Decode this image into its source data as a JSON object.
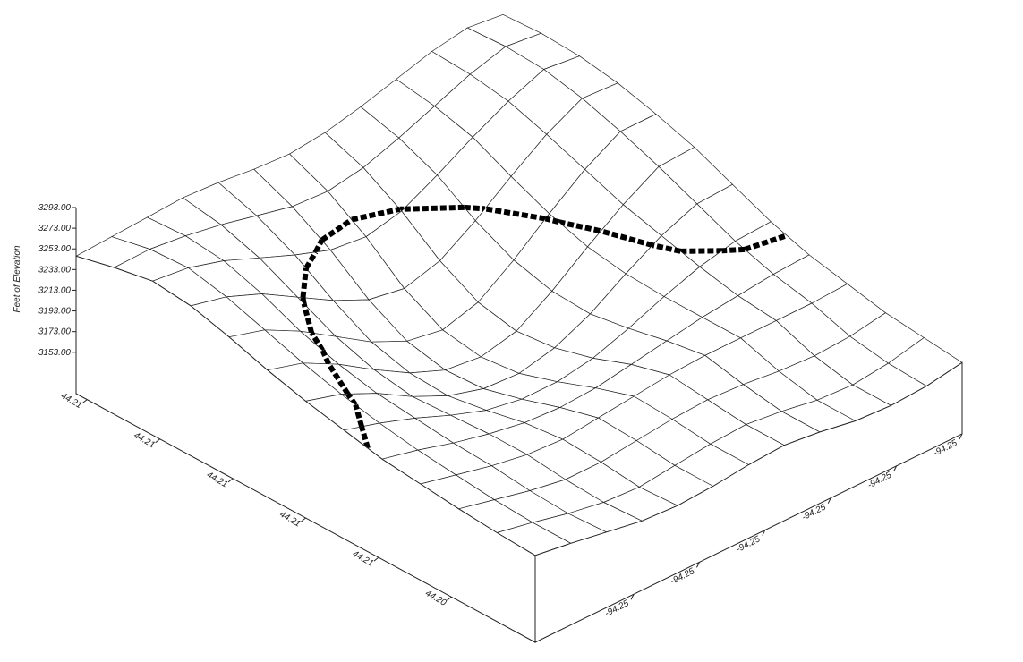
{
  "chart_data": {
    "type": "surface",
    "zlabel": "Feet of Elevation",
    "x": [
      44.2143,
      44.21325,
      44.2122,
      44.21115,
      44.2101,
      44.20905,
      44.208,
      44.20695,
      44.2059,
      44.20485,
      44.2038,
      44.20275,
      44.2017
    ],
    "y": [
      -94.2556,
      -94.25495,
      -94.2543,
      -94.25365,
      -94.253,
      -94.25235,
      -94.2517,
      -94.25105,
      -94.2504,
      -94.24975,
      -94.2491,
      -94.24845,
      -94.2478
    ],
    "z": [
      [
        3246,
        3248,
        3250,
        3252,
        3250,
        3246,
        3244,
        3248,
        3256,
        3266,
        3276,
        3282,
        3278
      ],
      [
        3255,
        3256,
        3252,
        3246,
        3238,
        3230,
        3228,
        3234,
        3246,
        3260,
        3274,
        3284,
        3280
      ],
      [
        3262,
        3258,
        3248,
        3234,
        3220,
        3208,
        3204,
        3212,
        3230,
        3250,
        3268,
        3282,
        3278
      ],
      [
        3258,
        3250,
        3236,
        3216,
        3196,
        3180,
        3174,
        3184,
        3206,
        3232,
        3256,
        3274,
        3272
      ],
      [
        3248,
        3238,
        3220,
        3198,
        3176,
        3160,
        3154,
        3164,
        3188,
        3216,
        3242,
        3262,
        3262
      ],
      [
        3236,
        3226,
        3208,
        3186,
        3166,
        3152,
        3148,
        3156,
        3178,
        3204,
        3228,
        3248,
        3250
      ],
      [
        3226,
        3216,
        3200,
        3180,
        3164,
        3154,
        3152,
        3160,
        3176,
        3198,
        3218,
        3232,
        3234
      ],
      [
        3218,
        3208,
        3196,
        3182,
        3170,
        3164,
        3164,
        3170,
        3182,
        3196,
        3208,
        3216,
        3218
      ],
      [
        3210,
        3202,
        3192,
        3184,
        3178,
        3176,
        3178,
        3184,
        3190,
        3196,
        3200,
        3204,
        3206
      ],
      [
        3206,
        3198,
        3190,
        3184,
        3182,
        3186,
        3190,
        3194,
        3196,
        3196,
        3196,
        3196,
        3198
      ],
      [
        3202,
        3194,
        3186,
        3180,
        3180,
        3184,
        3188,
        3190,
        3188,
        3184,
        3182,
        3184,
        3190
      ],
      [
        3199,
        3192,
        3184,
        3178,
        3176,
        3180,
        3184,
        3186,
        3182,
        3176,
        3174,
        3178,
        3186
      ],
      [
        3197,
        3192,
        3186,
        3180,
        3178,
        3180,
        3184,
        3186,
        3182,
        3176,
        3174,
        3176,
        3182
      ]
    ],
    "xlim": [
      44.2143,
      44.2017
    ],
    "ylim": [
      -94.2556,
      -94.2478
    ],
    "zlim": [
      3113,
      3293
    ],
    "xticks": [
      {
        "value": 44.214,
        "label": "44.21"
      },
      {
        "value": 44.212,
        "label": "44.21"
      },
      {
        "value": 44.21,
        "label": "44.21"
      },
      {
        "value": 44.208,
        "label": "44.21"
      },
      {
        "value": 44.206,
        "label": "44.21"
      },
      {
        "value": 44.204,
        "label": "44.20"
      }
    ],
    "yticks": [
      {
        "value": -94.2538,
        "label": "-94.25"
      },
      {
        "value": -94.2526,
        "label": "-94.25"
      },
      {
        "value": -94.2514,
        "label": "-94.25"
      },
      {
        "value": -94.2502,
        "label": "-94.25"
      },
      {
        "value": -94.249,
        "label": "-94.25"
      },
      {
        "value": -94.2478,
        "label": "-94.25"
      }
    ],
    "zticks": [
      {
        "value": 3293,
        "label": "3293.00"
      },
      {
        "value": 3273,
        "label": "3273.00"
      },
      {
        "value": 3253,
        "label": "3253.00"
      },
      {
        "value": 3233,
        "label": "3233.00"
      },
      {
        "value": 3213,
        "label": "3213.00"
      },
      {
        "value": 3193,
        "label": "3193.00"
      },
      {
        "value": 3173,
        "label": "3173.00"
      },
      {
        "value": 3153,
        "label": "3153.00"
      }
    ],
    "contour_level": 3213,
    "line_color": "#222222",
    "contour_color": "#000000"
  }
}
